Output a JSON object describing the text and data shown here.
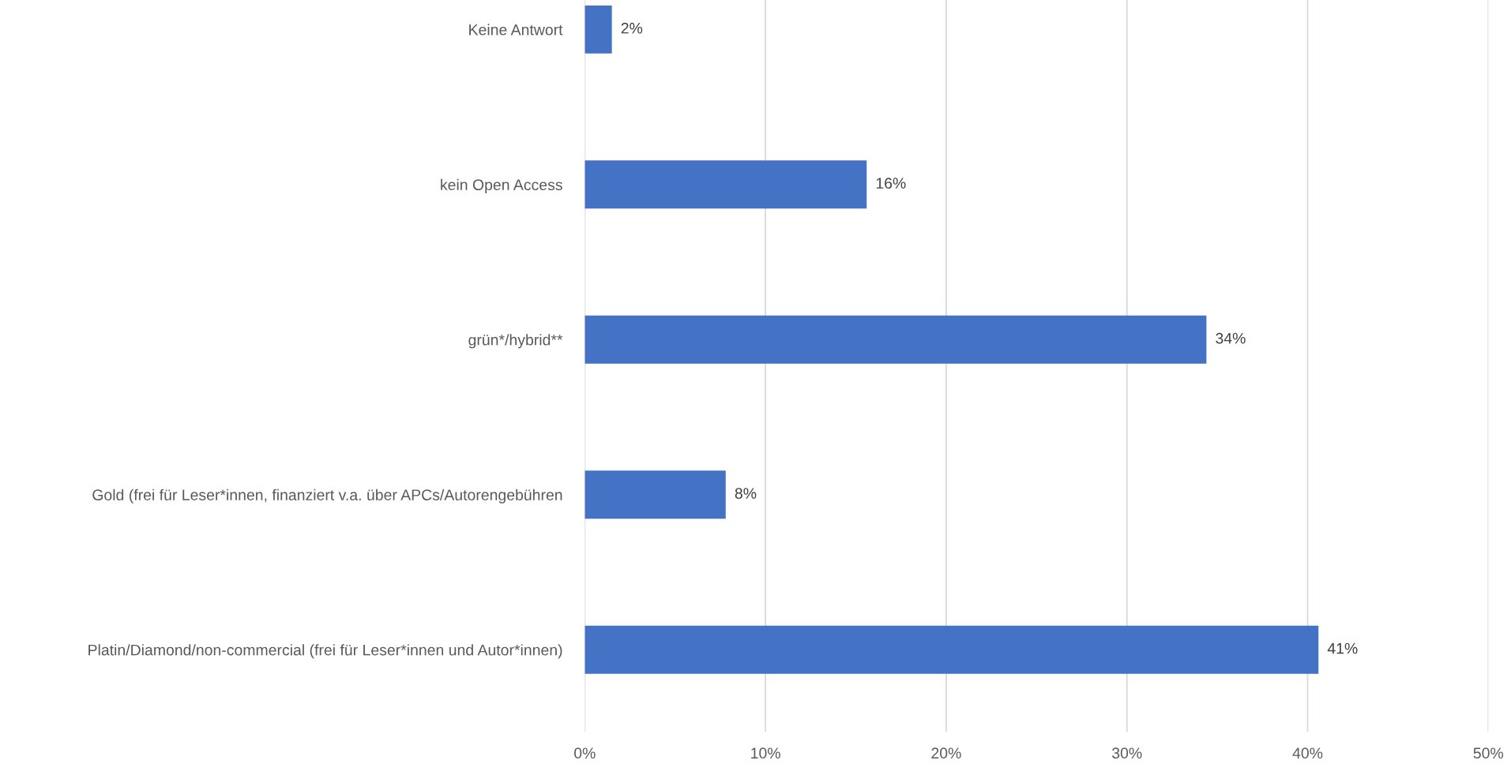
{
  "chart_data": {
    "type": "bar",
    "orientation": "horizontal",
    "categories": [
      "Keine Antwort",
      "kein Open Access",
      "grün*/hybrid**",
      "Gold (frei für Leser*innen, finanziert v.a. über APCs/Autorengebühren",
      "Platin/Diamond/non-commercial (frei für Leser*innen und Autor*innen)"
    ],
    "values": [
      1.5,
      15.6,
      34.4,
      7.8,
      40.6
    ],
    "value_labels": [
      "2%",
      "16%",
      "34%",
      "8%",
      "41%"
    ],
    "color": "#4472c4",
    "xlim": [
      0,
      50
    ],
    "xticks": [
      {
        "value": 0,
        "label": "0%"
      },
      {
        "value": 10,
        "label": "10%"
      },
      {
        "value": 20,
        "label": "20%"
      },
      {
        "value": 30,
        "label": "30%"
      },
      {
        "value": 40,
        "label": "40%"
      },
      {
        "value": 50,
        "label": "50%"
      }
    ],
    "grid": "x"
  }
}
